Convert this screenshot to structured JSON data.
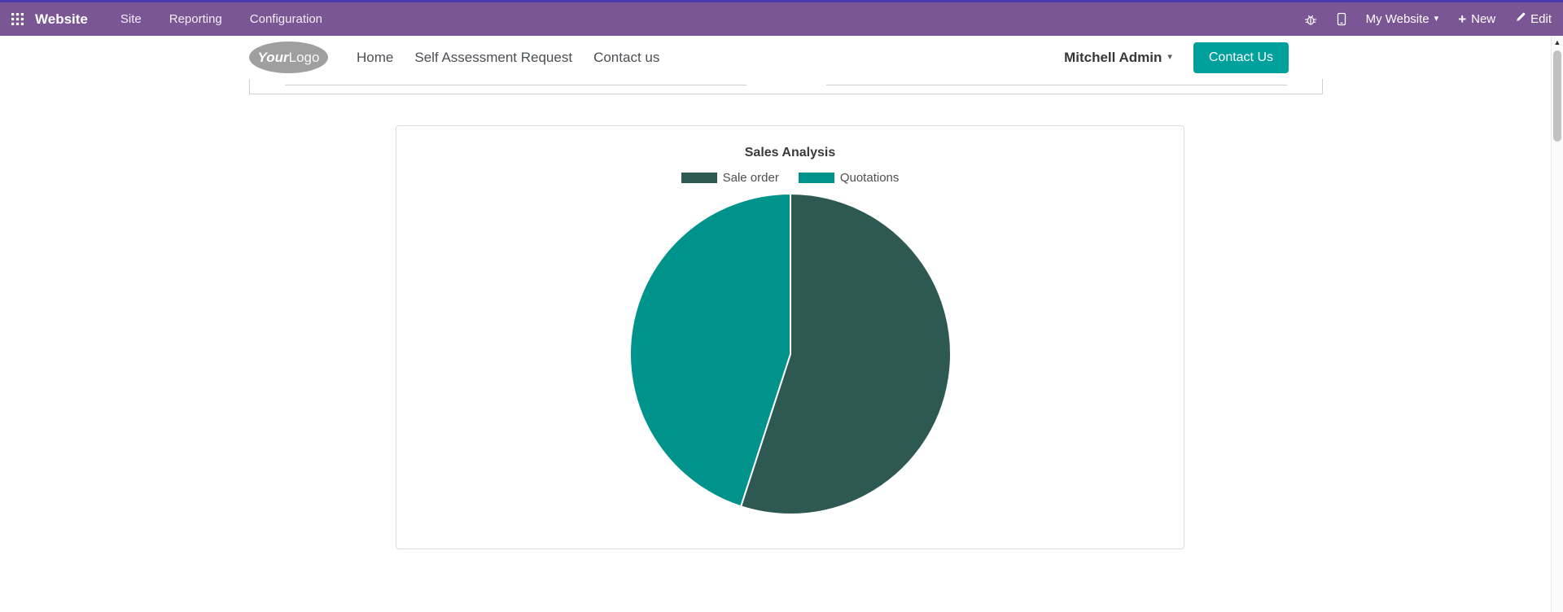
{
  "topbar": {
    "brand": "Website",
    "menu_items": [
      "Site",
      "Reporting",
      "Configuration"
    ],
    "my_website_label": "My Website",
    "new_label": "New",
    "edit_label": "Edit"
  },
  "site_header": {
    "logo_primary": "Your",
    "logo_secondary": "Logo",
    "nav_items": [
      "Home",
      "Self Assessment Request",
      "Contact us"
    ],
    "user_name": "Mitchell Admin",
    "contact_button_label": "Contact Us"
  },
  "icons": {
    "caret_down": "▾",
    "plus": "+",
    "scroll_up": "▲"
  },
  "colors": {
    "topbar_bg": "#7b5694",
    "topbar_top_line": "#4a3aad",
    "button_teal": "#00a09d",
    "logo_gray": "#9f9f9f"
  },
  "chart_data": {
    "type": "pie",
    "title": "Sales Analysis",
    "labels": [
      "Sale order",
      "Quotations"
    ],
    "values": [
      55,
      45
    ],
    "colors": [
      "#2e5952",
      "#00938c"
    ],
    "legend_position": "top",
    "start_angle_deg": -90,
    "direction": "clockwise"
  }
}
